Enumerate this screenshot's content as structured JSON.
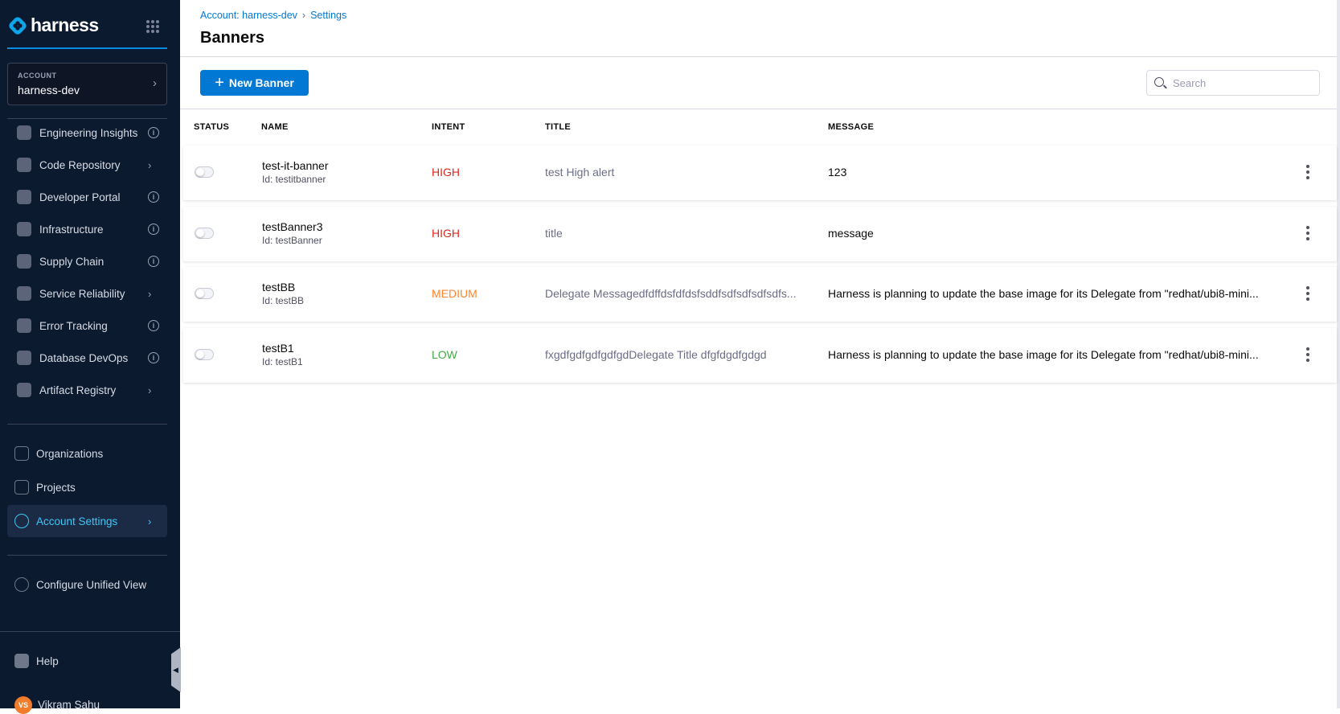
{
  "sidebar": {
    "brand": "harness",
    "account": {
      "label": "ACCOUNT",
      "name": "harness-dev"
    },
    "modules": [
      {
        "label": "Engineering Insights",
        "trailing": "info"
      },
      {
        "label": "Code Repository",
        "trailing": "chevron"
      },
      {
        "label": "Developer Portal",
        "trailing": "info"
      },
      {
        "label": "Infrastructure",
        "trailing": "info"
      },
      {
        "label": "Supply Chain",
        "trailing": "info"
      },
      {
        "label": "Service Reliability",
        "trailing": "chevron"
      },
      {
        "label": "Error Tracking",
        "trailing": "info"
      },
      {
        "label": "Database DevOps",
        "trailing": "info"
      },
      {
        "label": "Artifact Registry",
        "trailing": "chevron"
      }
    ],
    "organizations": "Organizations",
    "projects": "Projects",
    "account_settings": "Account Settings",
    "configure": "Configure Unified View",
    "help": "Help",
    "user": {
      "initials": "VS",
      "name": "Vikram Sahu"
    },
    "accent": "#3dc7f6"
  },
  "header": {
    "breadcrumb": [
      "Account: harness-dev",
      "Settings"
    ],
    "title": "Banners"
  },
  "toolbar": {
    "new_label": "New Banner",
    "search_placeholder": "Search"
  },
  "table": {
    "columns": [
      "STATUS",
      "NAME",
      "INTENT",
      "TITLE",
      "MESSAGE"
    ],
    "rows": [
      {
        "enabled": false,
        "name": "test-it-banner",
        "id": "Id: testitbanner",
        "intent": "HIGH",
        "intent_color": "#da291d",
        "title": "test High alert",
        "message": "123"
      },
      {
        "enabled": false,
        "name": "testBanner3",
        "id": "Id: testBanner",
        "intent": "HIGH",
        "intent_color": "#da291d",
        "title": "title",
        "message": "message"
      },
      {
        "enabled": false,
        "name": "testBB",
        "id": "Id: testBB",
        "intent": "MEDIUM",
        "intent_color": "#ff832b",
        "title": "Delegate Messagedfdffdsfdfdsfsddfsdfsdfsdfsdfs...",
        "message": "Harness is planning to update the base image for its Delegate from \"redhat/ubi8-mini..."
      },
      {
        "enabled": false,
        "name": "testB1",
        "id": "Id: testB1",
        "intent": "LOW",
        "intent_color": "#42ab45",
        "title": "fxgdfgdfgdfgdfgdDelegate Title dfgfdgdfgdgd",
        "message": "Harness is planning to update the base image for its Delegate from \"redhat/ubi8-mini..."
      }
    ]
  }
}
